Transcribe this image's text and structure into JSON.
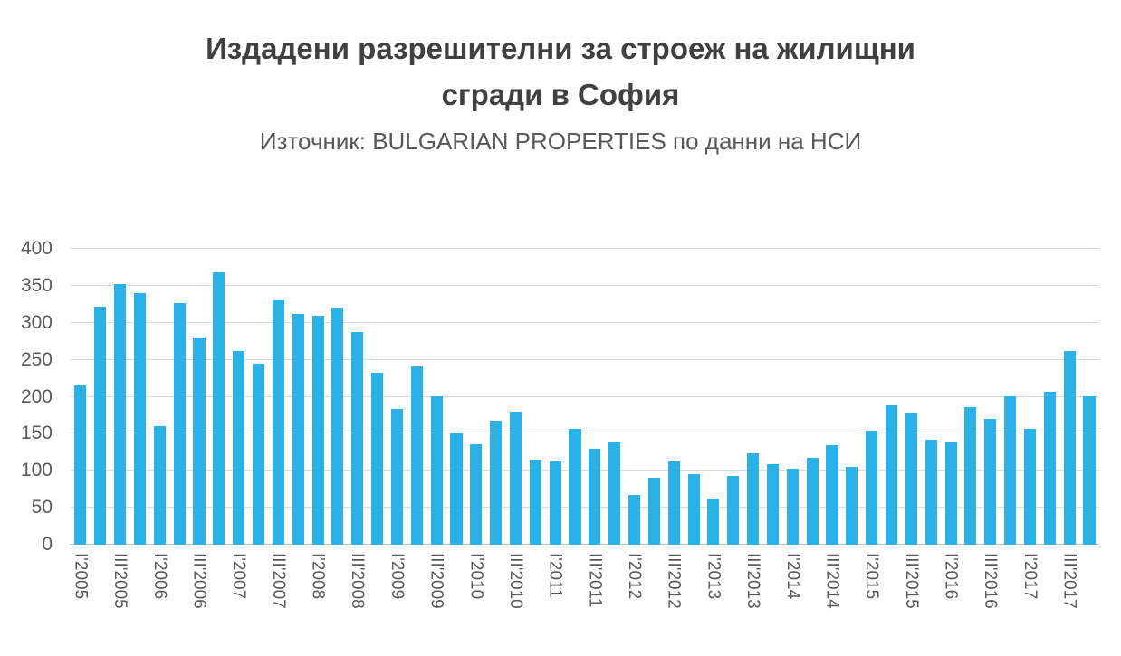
{
  "chart_data": {
    "type": "bar",
    "title": "Издадени разрешителни за строеж на жилищни сгради в София",
    "title_lines": [
      "Издадени разрешителни за строеж на жилищни",
      "сгради в София"
    ],
    "subtitle": "Източник: BULGARIAN PROPERTIES по данни на НСИ",
    "xlabel": "",
    "ylabel": "",
    "ylim": [
      0,
      400
    ],
    "yticks": [
      0,
      50,
      100,
      150,
      200,
      250,
      300,
      350,
      400
    ],
    "grid": "horizontal",
    "legend": "none",
    "bar_color": "#2ab2e8",
    "categories": [
      "I'2005",
      "II'2005",
      "III'2005",
      "IV'2005",
      "I'2006",
      "II'2006",
      "III'2006",
      "IV'2006",
      "I'2007",
      "II'2007",
      "III'2007",
      "IV'2007",
      "I'2008",
      "II'2008",
      "III'2008",
      "IV'2008",
      "I'2009",
      "II'2009",
      "III'2009",
      "IV'2009",
      "I'2010",
      "II'2010",
      "III'2010",
      "IV'2010",
      "I'2011",
      "II'2011",
      "III'2011",
      "IV'2011",
      "I'2012",
      "II'2012",
      "III'2012",
      "IV'2012",
      "I'2013",
      "II'2013",
      "III'2013",
      "IV'2013",
      "I'2014",
      "II'2014",
      "III'2014",
      "IV'2014",
      "I'2015",
      "II'2015",
      "III'2015",
      "IV'2015",
      "I'2016",
      "II'2016",
      "III'2016",
      "IV'2016",
      "I'2017",
      "II'2017",
      "III'2017",
      "IV'2017"
    ],
    "values": [
      215,
      322,
      352,
      340,
      160,
      327,
      280,
      368,
      262,
      245,
      330,
      312,
      310,
      320,
      287,
      232,
      183,
      241,
      201,
      150,
      136,
      167,
      180,
      115,
      112,
      157,
      130,
      138,
      67,
      90,
      112,
      95,
      62,
      93,
      124,
      109,
      103,
      118,
      135,
      105,
      154,
      188,
      179,
      142,
      140,
      186,
      170,
      201,
      157,
      207,
      262,
      201
    ],
    "x_tick_labels": [
      "I'2005",
      "III'2005",
      "I'2006",
      "III'2006",
      "I'2007",
      "III'2007",
      "I'2008",
      "III'2008",
      "I'2009",
      "III'2009",
      "I'2010",
      "III'2010",
      "I'2011",
      "III'2011",
      "I'2012",
      "III'2012",
      "I'2013",
      "III'2013",
      "I'2014",
      "III'2014",
      "I'2015",
      "III'2015",
      "I'2016",
      "III'2016",
      "I'2017",
      "III'2017"
    ]
  }
}
